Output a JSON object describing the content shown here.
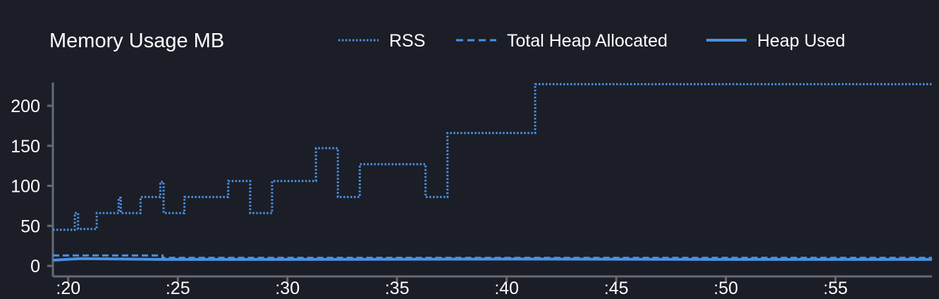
{
  "chart_data": {
    "type": "line",
    "title": "Memory Usage MB",
    "xlabel": "",
    "ylabel": "",
    "x_unit": "seconds",
    "xlim": [
      19.3,
      59.4
    ],
    "ylim": [
      0,
      230
    ],
    "xticks": [
      20,
      25,
      30,
      35,
      40,
      45,
      50,
      55
    ],
    "xtick_labels": [
      ":20",
      ":25",
      ":30",
      ":35",
      ":40",
      ":45",
      ":50",
      ":55"
    ],
    "yticks": [
      0,
      50,
      100,
      150,
      200
    ],
    "ytick_labels": [
      "0",
      "50",
      "100",
      "150",
      "200"
    ],
    "grid": false,
    "legend_position": "top",
    "series": [
      {
        "name": "RSS",
        "style": "dotted",
        "color": "#4a90e2",
        "step": true,
        "x": [
          19.3,
          20.3,
          20.45,
          21.3,
          22.3,
          22.4,
          23.3,
          24.2,
          24.35,
          25.3,
          27.3,
          28.3,
          29.3,
          31.3,
          32.3,
          33.3,
          36.3,
          37.3,
          41.3,
          59.4
        ],
        "y": [
          45,
          66,
          46,
          66,
          85,
          66,
          86,
          105,
          66,
          86,
          106,
          66,
          106,
          147,
          86,
          127,
          86,
          166,
          227,
          227
        ]
      },
      {
        "name": "Total Heap Allocated",
        "style": "dashed",
        "color": "#4a90e2",
        "step": true,
        "x": [
          19.3,
          24.3,
          59.4
        ],
        "y": [
          13,
          10,
          10
        ]
      },
      {
        "name": "Heap Used",
        "style": "solid",
        "color": "#4a90e2",
        "step": false,
        "x": [
          19.3,
          20.5,
          24.3,
          30,
          40,
          50,
          59.4
        ],
        "y": [
          7,
          9,
          8,
          8,
          8.5,
          8,
          8
        ]
      }
    ]
  }
}
